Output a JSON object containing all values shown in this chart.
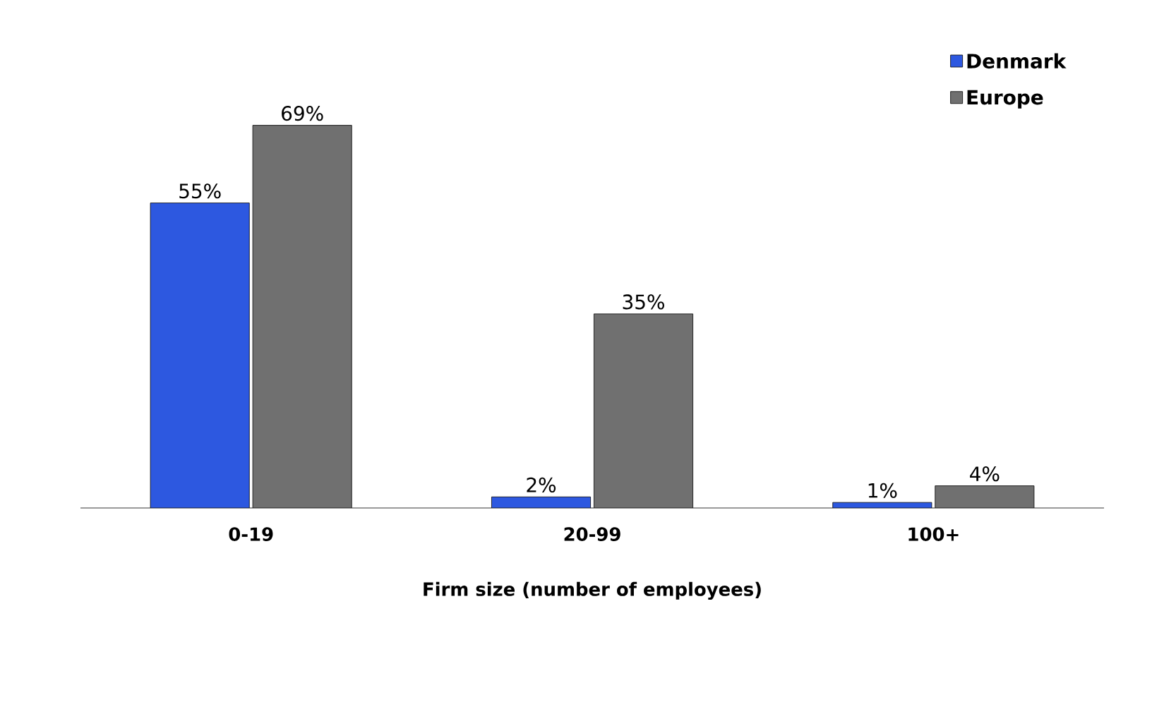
{
  "chart_data": {
    "type": "bar",
    "categories": [
      "0-19",
      "20-99",
      "100+"
    ],
    "xlabel": "Firm size (number of employees)",
    "legend": "top right",
    "series": [
      {
        "name": "Denmark",
        "color": "#2d58e0",
        "values": [
          55,
          2,
          1
        ],
        "value_labels": [
          "55%",
          "2%",
          "1%"
        ]
      },
      {
        "name": "Europe",
        "color": "#707070",
        "values": [
          69,
          35,
          4
        ],
        "value_labels": [
          "69%",
          "35%",
          "4%"
        ]
      }
    ]
  }
}
